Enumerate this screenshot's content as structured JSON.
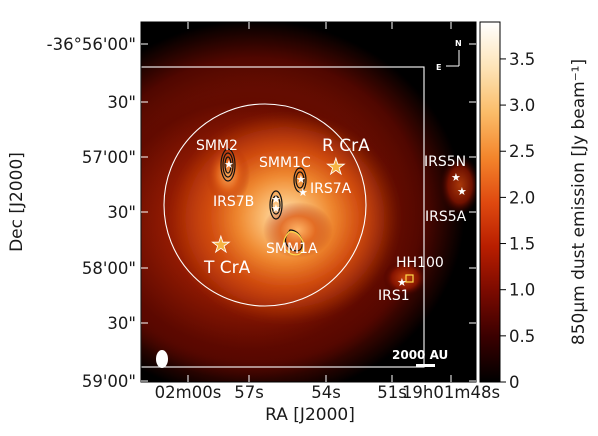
{
  "chart_data": {
    "type": "heatmap",
    "xlabel": "RA [J2000]",
    "ylabel": "Dec [J2000]",
    "x_ticks": [
      "02m00s",
      "57s",
      "54s",
      "51s",
      "19h01m48s"
    ],
    "y_ticks": [
      "-36°56'00\"",
      "30\"",
      "57'00\"",
      "30\"",
      "58'00\"",
      "30\"",
      "59'00\""
    ],
    "colorbar": {
      "label": "850μm dust emission [Jy beam⁻¹]",
      "ticks": [
        "0",
        "0.5",
        "1.0",
        "1.5",
        "2.0",
        "2.5",
        "3.0",
        "3.5"
      ],
      "range": [
        0,
        3.9
      ],
      "colormap": [
        "#000000",
        "#3a0000",
        "#7a0a00",
        "#b81e00",
        "#e04a10",
        "#f4862c",
        "#fbbd6a",
        "#fde4b8",
        "#ffffff"
      ]
    },
    "sources": [
      {
        "name": "SMM2"
      },
      {
        "name": "R CrA",
        "marker": "star-large"
      },
      {
        "name": "SMM1C"
      },
      {
        "name": "IRS7B"
      },
      {
        "name": "IRS7A"
      },
      {
        "name": "SMM1A"
      },
      {
        "name": "T CrA",
        "marker": "star-large"
      },
      {
        "name": "IRS5N"
      },
      {
        "name": "IRS5A"
      },
      {
        "name": "HH100"
      },
      {
        "name": "IRS1"
      }
    ],
    "compass": {
      "north": "N",
      "east": "E"
    },
    "scalebar": "2000 AU",
    "grid": false
  }
}
